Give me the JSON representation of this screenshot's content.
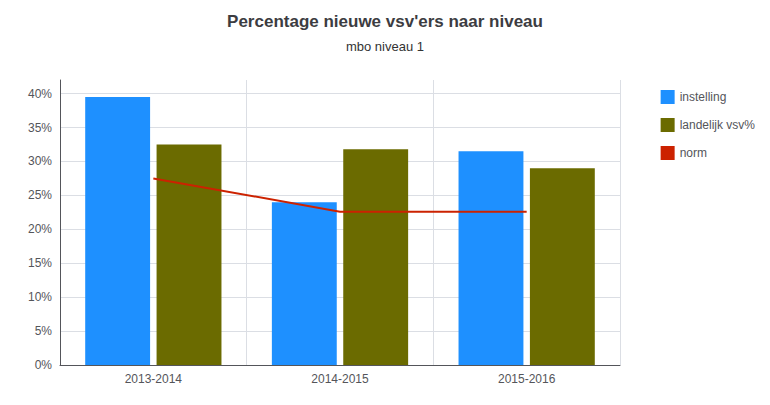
{
  "chart_data": {
    "type": "bar",
    "title": "Percentage nieuwe vsv'ers naar niveau",
    "subtitle": "mbo niveau 1",
    "categories": [
      "2013-2014",
      "2014-2015",
      "2015-2016"
    ],
    "series": [
      {
        "name": "instelling",
        "color": "#1E90FF",
        "values": [
          0.395,
          0.24,
          0.315
        ]
      },
      {
        "name": "landelijk vsv%",
        "color": "#6B6B00",
        "values": [
          0.325,
          0.318,
          0.29
        ]
      },
      {
        "name": "norm",
        "type": "line",
        "color": "#CC2200",
        "values": [
          0.275,
          0.226,
          0.226
        ]
      }
    ],
    "ylim": [
      0,
      0.42
    ],
    "yticks": [
      {
        "value": 0,
        "label": "0%"
      },
      {
        "value": 0.05,
        "label": "5%"
      },
      {
        "value": 0.1,
        "label": "10%"
      },
      {
        "value": 0.15,
        "label": "15%"
      },
      {
        "value": 0.2,
        "label": "20%"
      },
      {
        "value": 0.25,
        "label": "25%"
      },
      {
        "value": 0.3,
        "label": "30%"
      },
      {
        "value": 0.35,
        "label": "35%"
      },
      {
        "value": 0.4,
        "label": "40%"
      }
    ],
    "grid": true,
    "legend": "right"
  }
}
